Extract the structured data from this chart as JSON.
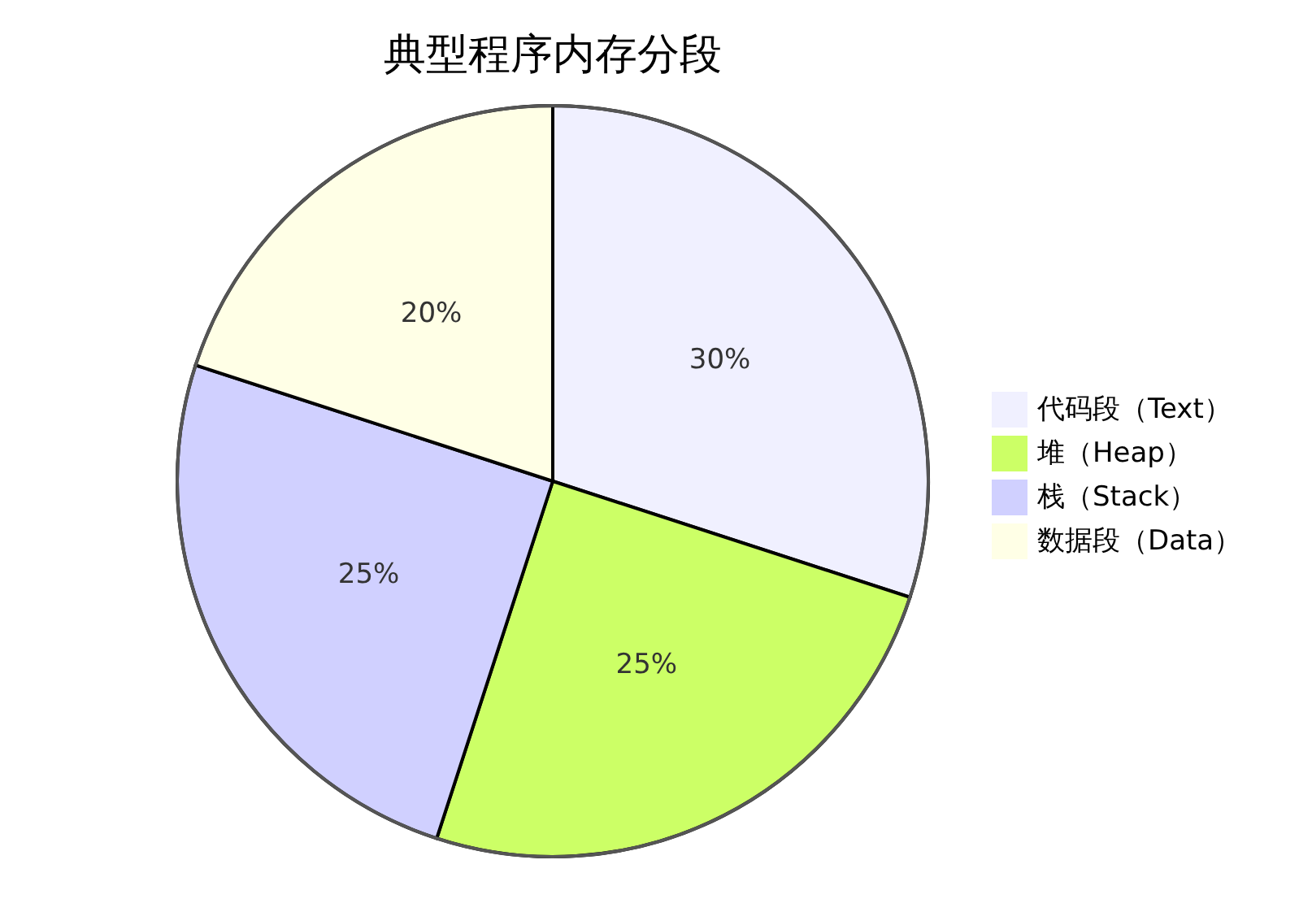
{
  "chart_data": {
    "type": "pie",
    "title": "典型程序内存分段",
    "categories": [
      "代码段（Text）",
      "堆（Heap）",
      "栈（Stack）",
      "数据段（Data）"
    ],
    "values": [
      30,
      25,
      25,
      20
    ],
    "colors": [
      "#f0f0ff",
      "#ccff66",
      "#d0d0ff",
      "#ffffe6"
    ],
    "value_labels": [
      "30%",
      "25%",
      "25%",
      "20%"
    ],
    "legend": "right"
  }
}
